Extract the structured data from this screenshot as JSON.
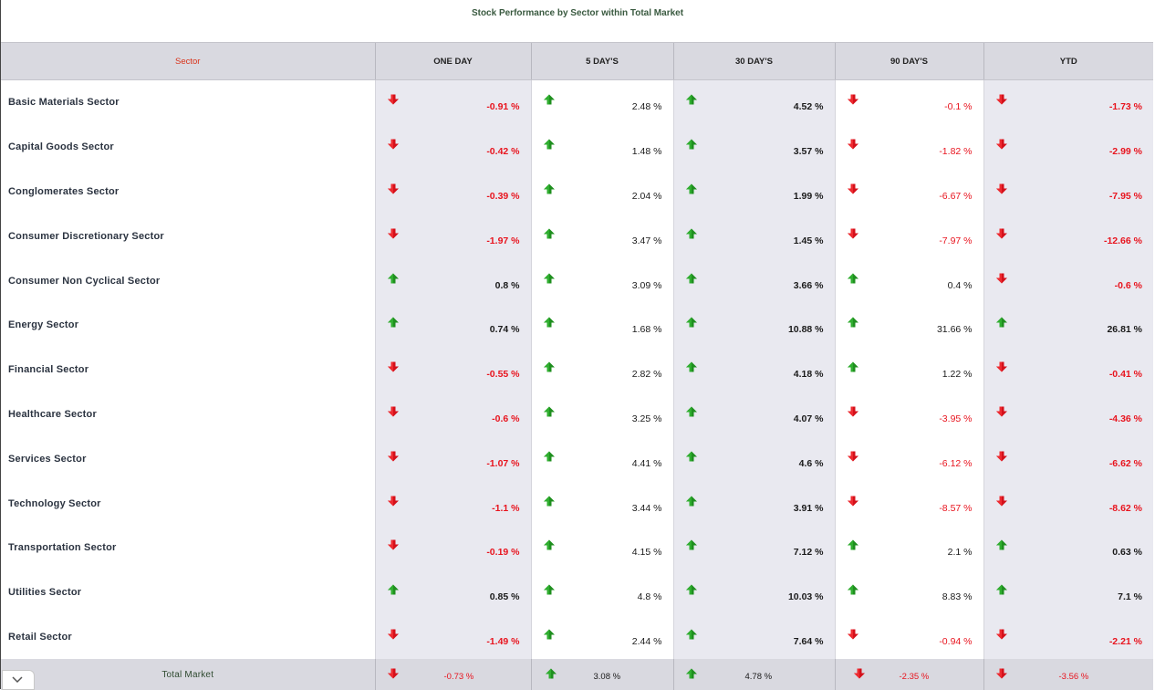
{
  "title": "Stock Performance by Sector within Total Market",
  "headers": [
    "Sector",
    "ONE DAY",
    "5 DAY'S",
    "30 DAY'S",
    "90 DAY'S",
    "YTD"
  ],
  "colors": {
    "negative": "#e8141e",
    "up_arrow": "#1f8f1f",
    "down_arrow": "#d4101a",
    "header_bg": "#d9d9e0",
    "sector_header": "#d9331a"
  },
  "rows": [
    {
      "sector": "Basic Materials Sector",
      "cells": [
        {
          "text": "-0.91 %",
          "dir": "down"
        },
        {
          "text": "2.48 %",
          "dir": "up"
        },
        {
          "text": "4.52 %",
          "dir": "up"
        },
        {
          "text": "-0.1 %",
          "dir": "down"
        },
        {
          "text": "-1.73 %",
          "dir": "down"
        }
      ]
    },
    {
      "sector": "Capital Goods Sector",
      "cells": [
        {
          "text": "-0.42 %",
          "dir": "down"
        },
        {
          "text": "1.48 %",
          "dir": "up"
        },
        {
          "text": "3.57 %",
          "dir": "up"
        },
        {
          "text": "-1.82 %",
          "dir": "down"
        },
        {
          "text": "-2.99 %",
          "dir": "down"
        }
      ]
    },
    {
      "sector": "Conglomerates Sector",
      "cells": [
        {
          "text": "-0.39 %",
          "dir": "down"
        },
        {
          "text": "2.04 %",
          "dir": "up"
        },
        {
          "text": "1.99 %",
          "dir": "up"
        },
        {
          "text": "-6.67 %",
          "dir": "down"
        },
        {
          "text": "-7.95 %",
          "dir": "down"
        }
      ]
    },
    {
      "sector": "Consumer Discretionary Sector",
      "cells": [
        {
          "text": "-1.97 %",
          "dir": "down"
        },
        {
          "text": "3.47 %",
          "dir": "up"
        },
        {
          "text": "1.45 %",
          "dir": "up"
        },
        {
          "text": "-7.97 %",
          "dir": "down"
        },
        {
          "text": "-12.66 %",
          "dir": "down"
        }
      ]
    },
    {
      "sector": "Consumer Non Cyclical Sector",
      "cells": [
        {
          "text": "0.8 %",
          "dir": "up"
        },
        {
          "text": "3.09 %",
          "dir": "up"
        },
        {
          "text": "3.66 %",
          "dir": "up"
        },
        {
          "text": "0.4 %",
          "dir": "up"
        },
        {
          "text": "-0.6 %",
          "dir": "down"
        }
      ]
    },
    {
      "sector": "Energy Sector",
      "cells": [
        {
          "text": "0.74 %",
          "dir": "up"
        },
        {
          "text": "1.68 %",
          "dir": "up"
        },
        {
          "text": "10.88 %",
          "dir": "up"
        },
        {
          "text": "31.66 %",
          "dir": "up"
        },
        {
          "text": "26.81 %",
          "dir": "up"
        }
      ]
    },
    {
      "sector": "Financial Sector",
      "cells": [
        {
          "text": "-0.55 %",
          "dir": "down"
        },
        {
          "text": "2.82 %",
          "dir": "up"
        },
        {
          "text": "4.18 %",
          "dir": "up"
        },
        {
          "text": "1.22 %",
          "dir": "up"
        },
        {
          "text": "-0.41 %",
          "dir": "down"
        }
      ]
    },
    {
      "sector": "Healthcare Sector",
      "cells": [
        {
          "text": "-0.6 %",
          "dir": "down"
        },
        {
          "text": "3.25 %",
          "dir": "up"
        },
        {
          "text": "4.07 %",
          "dir": "up"
        },
        {
          "text": "-3.95 %",
          "dir": "down"
        },
        {
          "text": "-4.36 %",
          "dir": "down"
        }
      ]
    },
    {
      "sector": "Services Sector",
      "cells": [
        {
          "text": "-1.07 %",
          "dir": "down"
        },
        {
          "text": "4.41 %",
          "dir": "up"
        },
        {
          "text": "4.6 %",
          "dir": "up"
        },
        {
          "text": "-6.12 %",
          "dir": "down"
        },
        {
          "text": "-6.62 %",
          "dir": "down"
        }
      ]
    },
    {
      "sector": "Technology Sector",
      "cells": [
        {
          "text": "-1.1 %",
          "dir": "down"
        },
        {
          "text": "3.44 %",
          "dir": "up"
        },
        {
          "text": "3.91 %",
          "dir": "up"
        },
        {
          "text": "-8.57 %",
          "dir": "down"
        },
        {
          "text": "-8.62 %",
          "dir": "down"
        }
      ]
    },
    {
      "sector": "Transportation Sector",
      "cells": [
        {
          "text": "-0.19 %",
          "dir": "down"
        },
        {
          "text": "4.15 %",
          "dir": "up"
        },
        {
          "text": "7.12 %",
          "dir": "up"
        },
        {
          "text": "2.1 %",
          "dir": "up"
        },
        {
          "text": "0.63 %",
          "dir": "up"
        }
      ]
    },
    {
      "sector": "Utilities Sector",
      "cells": [
        {
          "text": "0.85 %",
          "dir": "up"
        },
        {
          "text": "4.8 %",
          "dir": "up"
        },
        {
          "text": "10.03 %",
          "dir": "up"
        },
        {
          "text": "8.83 %",
          "dir": "up"
        },
        {
          "text": "7.1 %",
          "dir": "up"
        }
      ]
    },
    {
      "sector": "Retail Sector",
      "cells": [
        {
          "text": "-1.49 %",
          "dir": "down"
        },
        {
          "text": "2.44 %",
          "dir": "up"
        },
        {
          "text": "7.64 %",
          "dir": "up"
        },
        {
          "text": "-0.94 %",
          "dir": "down"
        },
        {
          "text": "-2.21 %",
          "dir": "down"
        }
      ]
    }
  ],
  "total": {
    "sector": "Total Market",
    "cells": [
      {
        "text": "-0.73 %",
        "dir": "down"
      },
      {
        "text": "3.08 %",
        "dir": "up"
      },
      {
        "text": "4.78 %",
        "dir": "up"
      },
      {
        "text": "-2.35 %",
        "dir": "down"
      },
      {
        "text": "-3.56 %",
        "dir": "down"
      }
    ]
  },
  "collapse_icon": "chevron-down-icon"
}
